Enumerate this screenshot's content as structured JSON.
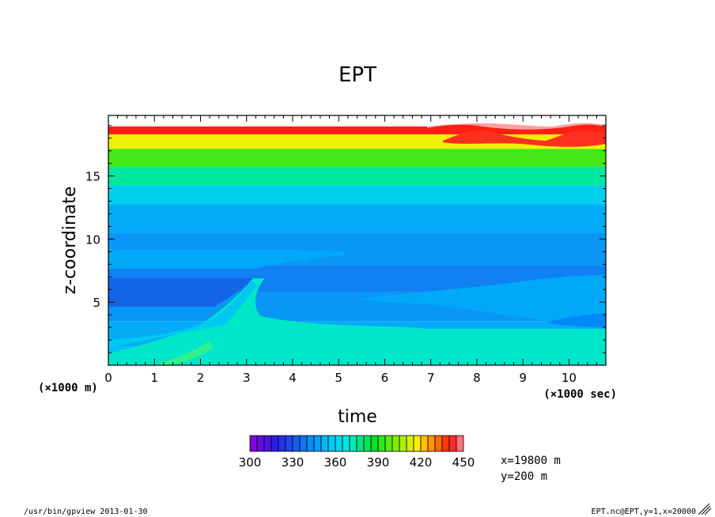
{
  "chart_data": {
    "type": "heatmap",
    "title": "EPT",
    "xlabel": "time",
    "ylabel": "z-coordinate",
    "x_unit": "(×1000 sec)",
    "y_unit": "(×1000 m)",
    "xlim": [
      0,
      10.8
    ],
    "ylim": [
      0,
      19.8
    ],
    "x_ticks": [
      "0",
      "1",
      "2",
      "3",
      "4",
      "5",
      "6",
      "7",
      "8",
      "9",
      "10"
    ],
    "y_ticks": [
      "5",
      "10",
      "15"
    ],
    "colorbar": {
      "min": 300,
      "max": 450,
      "step": 5,
      "tick_labels": [
        "300",
        "330",
        "360",
        "390",
        "420",
        "450"
      ]
    },
    "profile_at_t0": [
      {
        "z": 0.8,
        "value": 355
      },
      {
        "z": 2.2,
        "value": 350
      },
      {
        "z": 4.8,
        "value": 345
      },
      {
        "z": 6.8,
        "value": 340
      },
      {
        "z": 9.0,
        "value": 345
      },
      {
        "z": 12.0,
        "value": 350
      },
      {
        "z": 13.5,
        "value": 360
      },
      {
        "z": 15.0,
        "value": 375
      },
      {
        "z": 16.5,
        "value": 395
      },
      {
        "z": 17.8,
        "value": 415
      },
      {
        "z": 18.8,
        "value": 440
      }
    ],
    "grid": false,
    "legend": "colorbar-bottom"
  },
  "info": {
    "x_position": "x=19800 m",
    "y_position": "y=200 m"
  },
  "footer": {
    "left": "/usr/bin/gpview  2013-01-30",
    "right": "EPT.nc@EPT,y=1,x=20000"
  }
}
